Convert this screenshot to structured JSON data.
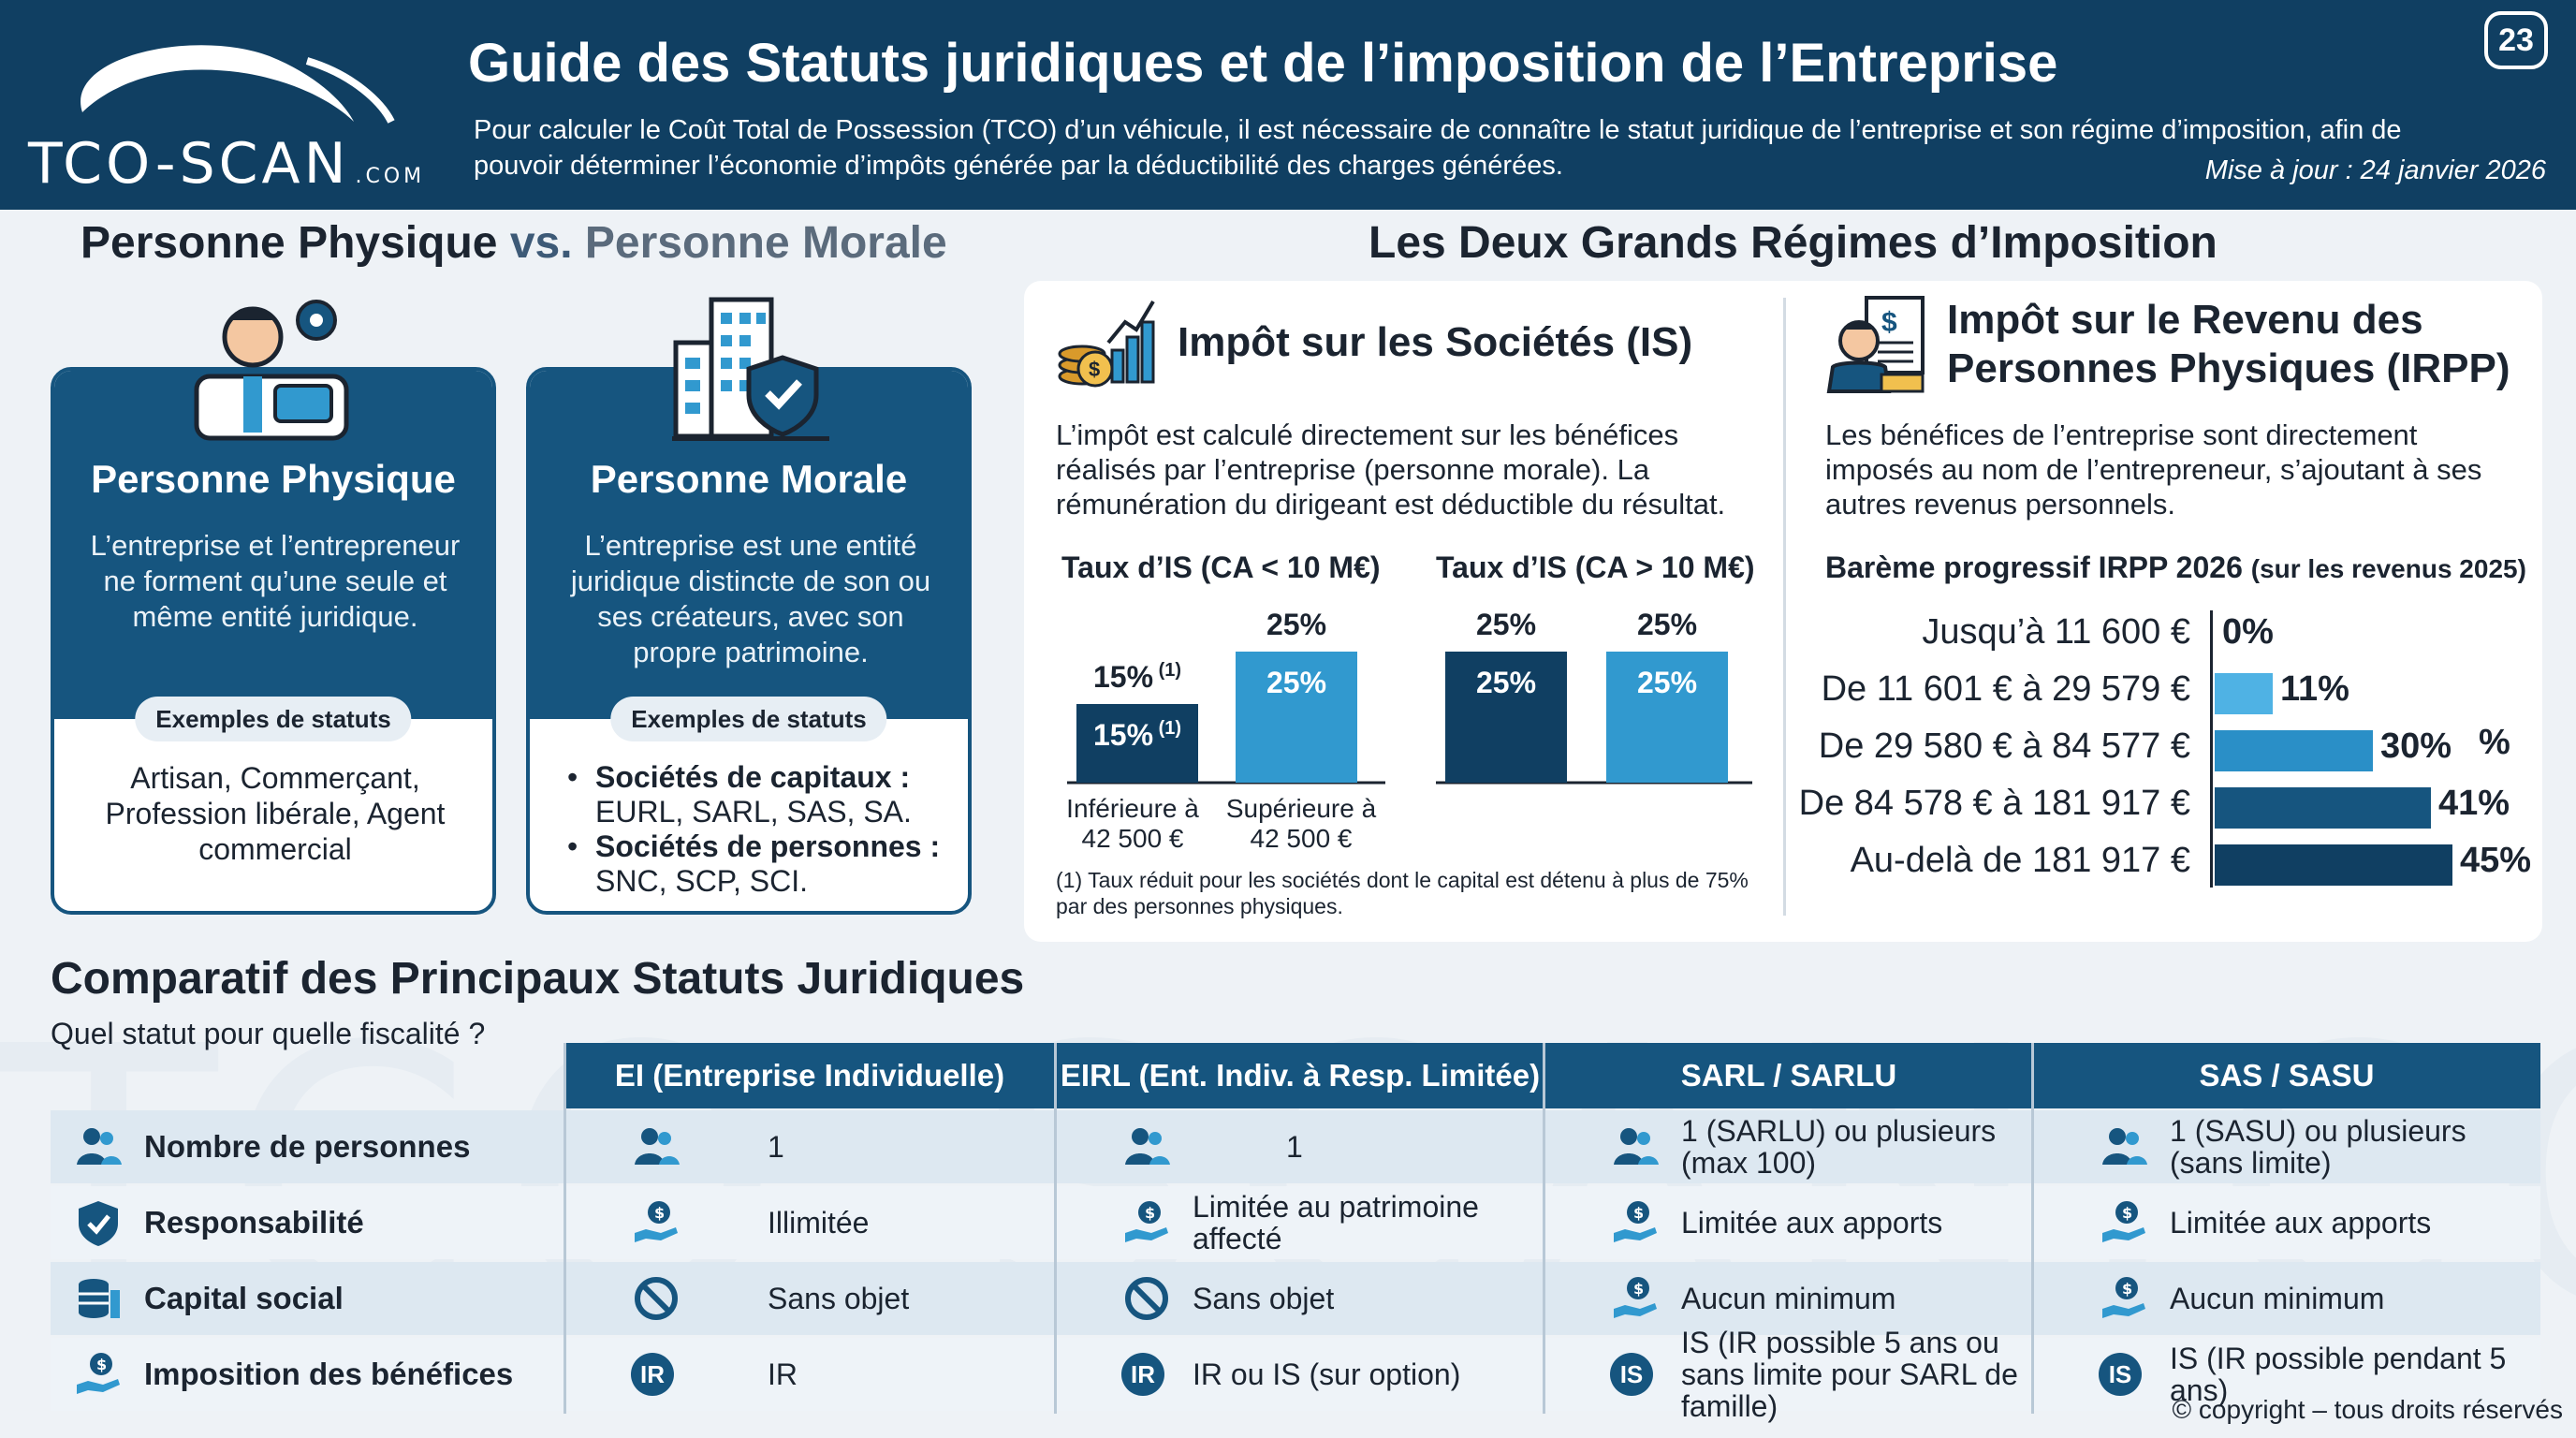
{
  "header": {
    "logo_text": "TCO-SCAN",
    "logo_suffix": ".COM",
    "title": "Guide des Statuts juridiques et de l’imposition de l’Entreprise",
    "subtitle": "Pour calculer le Coût Total de Possession (TCO) d’un véhicule, il est nécessaire de connaître le statut juridique de l’entreprise et son régime d’imposition, afin de pouvoir déterminer l’économie d’impôts générée par la déductibilité des charges générées.",
    "update": "Mise à jour : 24 janvier 2026",
    "page_number": "23"
  },
  "persons": {
    "title_part1": "Personne Physique",
    "title_vs": " vs. ",
    "title_part2": "Personne Morale",
    "physique": {
      "title": "Personne Physique",
      "description": "L’entreprise et l’entrepreneur ne forment qu’une seule et même entité juridique.",
      "examples_label": "Exemples de statuts",
      "examples": "Artisan, Commerçant, Profession libérale, Agent commercial"
    },
    "morale": {
      "title": "Personne Morale",
      "description": "L’entreprise est une entité juridique distincte de son ou ses créateurs, avec son propre patrimoine.",
      "examples_label": "Exemples de statuts",
      "item1_bold": "Sociétés de capitaux :",
      "item1_text": "EURL, SARL, SAS, SA.",
      "item2_bold": "Sociétés de personnes :",
      "item2_text": "SNC, SCP, SCI."
    }
  },
  "regimes": {
    "title": "Les Deux Grands Régimes d’Imposition",
    "is": {
      "title": "Impôt sur les Sociétés (IS)",
      "description": "L’impôt est calculé directement sur les bénéfices réalisés par l’entreprise (personne morale). La rémunération du dirigeant est déductible du résultat.",
      "chart1_title": "Taux d’IS (CA < 10 M€)",
      "chart2_title": "Taux d’IS (CA > 10 M€)",
      "footnote": "(1) Taux réduit pour les sociétés dont le capital est détenu à plus de 75% par des personnes physiques.",
      "footnote_mark": "(1)",
      "x_label_1": "Inférieure à 42 500 €",
      "x_label_2": "Supérieure à 42 500 €"
    },
    "irpp": {
      "title": "Impôt sur le Revenu des Personnes Physiques (IRPP)",
      "description": "Les bénéfices de l’entreprise sont directement imposés au nom de l’entrepreneur, s’ajoutant à ses autres revenus personnels.",
      "scale_title": "Barème progressif IRPP 2026",
      "scale_note": "(sur les revenus 2025)",
      "extra_mark": "%"
    }
  },
  "chart_data": [
    {
      "type": "bar",
      "title": "Taux d’IS (CA < 10 M€)",
      "categories": [
        "Inférieure à 42 500 €",
        "Supérieure à 42 500 €"
      ],
      "values": [
        15,
        25
      ],
      "value_labels": [
        "15%",
        "25%"
      ],
      "ylim": [
        0,
        30
      ],
      "colors": [
        "#103f62",
        "#3199cf"
      ]
    },
    {
      "type": "bar",
      "title": "Taux d’IS (CA > 10 M€)",
      "categories": [
        "",
        ""
      ],
      "values": [
        25,
        25
      ],
      "value_labels": [
        "25%",
        "25%"
      ],
      "ylim": [
        0,
        30
      ],
      "colors": [
        "#103f62",
        "#3199cf"
      ]
    },
    {
      "type": "bar",
      "title": "Barème progressif IRPP 2026",
      "categories": [
        "Jusqu’à 11 600 €",
        "De 11 601 € à 29 579 €",
        "De 29 580 € à 84 577 €",
        "De 84 578 € à 181 917 €",
        "Au-delà de 181 917 €"
      ],
      "values": [
        0,
        11,
        30,
        41,
        45
      ],
      "value_labels": [
        "0%",
        "11%",
        "30%",
        "41%",
        "45%"
      ],
      "ylim": [
        0,
        45
      ],
      "colors": [
        "#ffffff",
        "#4fb2e4",
        "#2a8fc7",
        "#16557f",
        "#103f62"
      ]
    }
  ],
  "comparison": {
    "title": "Comparatif des Principaux Statuts Juridiques",
    "subtitle": "Quel statut pour quelle fiscalité ?",
    "columns": [
      "EI (Entreprise Individuelle)",
      "EIRL (Ent. Indiv. à Resp. Limitée)",
      "SARL / SARLU",
      "SAS / SASU"
    ],
    "rows": [
      {
        "label": "Nombre de personnes",
        "icon": "people-icon",
        "cells": [
          "1",
          "1",
          "1 (SARLU) ou plusieurs (max 100)",
          "1 (SASU) ou plusieurs (sans limite)"
        ],
        "cell_icons": [
          "people-icon",
          "people-icon",
          "people-icon",
          "people-icon"
        ]
      },
      {
        "label": "Responsabilité",
        "icon": "shield-icon",
        "cells": [
          "Illimitée",
          "Limitée au patrimoine affecté",
          "Limitée aux apports",
          "Limitée aux apports"
        ],
        "cell_icons": [
          "money-hand-icon",
          "money-hand-icon",
          "money-hand-icon",
          "money-hand-icon"
        ]
      },
      {
        "label": "Capital social",
        "icon": "coins-icon",
        "cells": [
          "Sans objet",
          "Sans objet",
          "Aucun minimum",
          "Aucun minimum"
        ],
        "cell_icons": [
          "forbidden-icon",
          "forbidden-icon",
          "money-hand-icon",
          "money-hand-icon"
        ]
      },
      {
        "label": "Imposition des bénéfices",
        "icon": "money-hand-icon",
        "cells": [
          "IR",
          "IR ou IS (sur option)",
          "IS (IR possible 5 ans ou sans limite pour SARL de famille)",
          "IS (IR possible pendant 5 ans)"
        ],
        "cell_icons": [
          "IR",
          "IR",
          "IS",
          "IS"
        ]
      }
    ]
  },
  "copyright": "© copyright – tous droits réservés",
  "colors": {
    "navy": "#103f62",
    "blue": "#16557f",
    "accent": "#3199cf",
    "light": "#e3ecf3"
  }
}
